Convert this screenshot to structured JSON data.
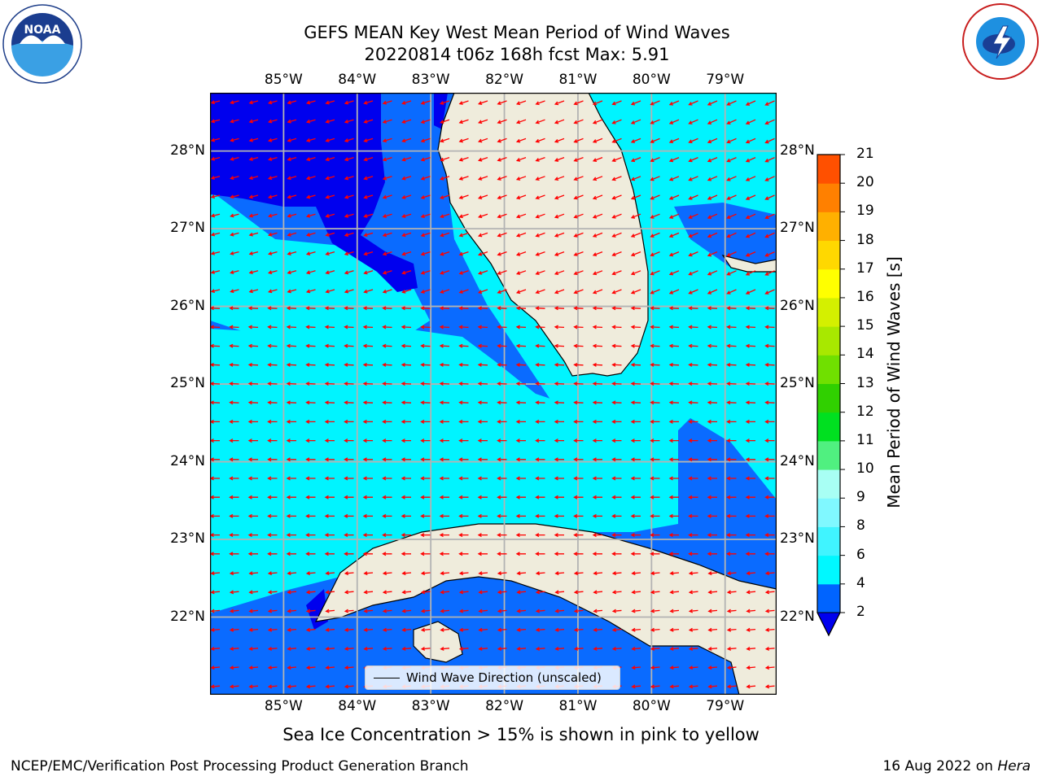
{
  "title": {
    "line1": "GEFS MEAN Key West Mean Period of Wind Waves",
    "line2": "20220814 t06z 168h fcst   Max: 5.91"
  },
  "logos": {
    "noaa_text": "NOAA",
    "nws_text": "NATIONAL WEATHER SERVICE"
  },
  "map": {
    "lon_labels": [
      "85°W",
      "84°W",
      "83°W",
      "82°W",
      "81°W",
      "80°W",
      "79°W"
    ],
    "lat_labels": [
      "28°N",
      "27°N",
      "26°N",
      "25°N",
      "24°N",
      "23°N",
      "22°N"
    ],
    "lon_range": [
      -86.0,
      -78.3
    ],
    "lat_range": [
      21.0,
      28.75
    ],
    "gridlines": true,
    "vector_field": "wind wave direction, red arrows",
    "colors": {
      "land": "#efecdc",
      "coast": "#000000",
      "grid": "#b3b3b3",
      "arrow": "#ff0000",
      "band_0_2": "#0000ee",
      "band_2_4": "#0a6bff",
      "band_4_6": "#00f4ff"
    }
  },
  "legend": {
    "label": "Wind Wave Direction (unscaled)"
  },
  "colorbar": {
    "label": "Mean Period of Wind Waves [s]",
    "ticks": [
      "2",
      "4",
      "6",
      "8",
      "9",
      "10",
      "11",
      "12",
      "13",
      "14",
      "15",
      "16",
      "17",
      "18",
      "19",
      "20",
      "21"
    ],
    "colors": [
      "#0064ff",
      "#00f8ff",
      "#40f4ff",
      "#80f8ff",
      "#a8fff4",
      "#50f080",
      "#00e020",
      "#30d000",
      "#70e000",
      "#a8e800",
      "#d4f000",
      "#ffff00",
      "#ffd800",
      "#ffb000",
      "#ff8000",
      "#ff5000",
      "#ff2400",
      "#ff0000"
    ],
    "extend_color": "#0000ee"
  },
  "chart_data": {
    "type": "heatmap",
    "title": "GEFS MEAN Key West Mean Period of Wind Waves",
    "subtitle": "20220814 t06z 168h fcst   Max: 5.91",
    "colorbar_label": "Mean Period of Wind Waves [s]",
    "colorbar_levels": [
      2,
      4,
      6,
      8,
      9,
      10,
      11,
      12,
      13,
      14,
      15,
      16,
      17,
      18,
      19,
      20,
      21
    ],
    "max_value": 5.91,
    "xlabel": "",
    "ylabel": "",
    "xlim": [
      -86.0,
      -78.3
    ],
    "ylim": [
      21.0,
      28.75
    ]
  },
  "footer": {
    "note": "Sea Ice Concentration > 15% is shown in pink to yellow",
    "left": "NCEP/EMC/Verification Post Processing Product Generation Branch",
    "date": "16 Aug 2022 on ",
    "machine": "Hera"
  }
}
